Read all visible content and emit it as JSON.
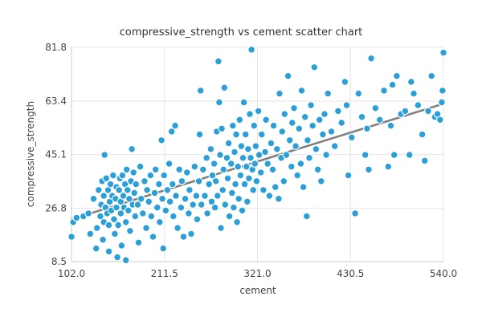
{
  "chart_data": {
    "type": "scatter",
    "title": "compressive_strength vs cement scatter chart",
    "xlabel": "cement",
    "ylabel": "compressive_strength",
    "xlim": [
      102.0,
      540.0
    ],
    "ylim": [
      8.5,
      81.8
    ],
    "x_ticks": [
      "102.0",
      "211.5",
      "321.0",
      "430.5",
      "540.0"
    ],
    "y_ticks": [
      "8.5",
      "26.8",
      "45.1",
      "63.4",
      "81.8"
    ],
    "grid": true,
    "legend": "none",
    "colors": {
      "points": "#2b9fd6",
      "trendline": "#808080"
    },
    "trendline": {
      "x": [
        102.0,
        540.0
      ],
      "y": [
        23.0,
        62.5
      ]
    },
    "series": [
      {
        "points": [
          [
            102,
            17.0
          ],
          [
            104,
            22.0
          ],
          [
            108,
            23.5
          ],
          [
            116,
            24.0
          ],
          [
            122,
            25.0
          ],
          [
            124,
            18.0
          ],
          [
            128,
            30.0
          ],
          [
            131,
            13.0
          ],
          [
            132,
            20.0
          ],
          [
            134,
            33.0
          ],
          [
            136,
            24.0
          ],
          [
            137,
            28.0
          ],
          [
            138,
            36.0
          ],
          [
            139,
            16.0
          ],
          [
            140,
            22.0
          ],
          [
            140,
            31.0
          ],
          [
            141,
            45.0
          ],
          [
            142,
            27.0
          ],
          [
            143,
            37.0
          ],
          [
            144,
            25.0
          ],
          [
            145,
            33.0
          ],
          [
            146,
            21.0
          ],
          [
            146,
            12.0
          ],
          [
            147,
            29.0
          ],
          [
            148,
            35.0
          ],
          [
            149,
            26.0
          ],
          [
            150,
            31.0
          ],
          [
            151,
            38.0
          ],
          [
            152,
            23.0
          ],
          [
            153,
            18.0
          ],
          [
            154,
            30.0
          ],
          [
            155,
            34.0
          ],
          [
            155,
            27.0
          ],
          [
            156,
            10.0
          ],
          [
            157,
            21.0
          ],
          [
            158,
            33.0
          ],
          [
            159,
            37.0
          ],
          [
            160,
            29.0
          ],
          [
            160,
            25.0
          ],
          [
            161,
            14.0
          ],
          [
            162,
            38.0
          ],
          [
            163,
            31.0
          ],
          [
            164,
            27.0
          ],
          [
            165,
            35.0
          ],
          [
            166,
            9.0
          ],
          [
            166,
            22.0
          ],
          [
            167,
            40.0
          ],
          [
            168,
            33.0
          ],
          [
            169,
            26.0
          ],
          [
            170,
            30.0
          ],
          [
            171,
            19.0
          ],
          [
            172,
            36.0
          ],
          [
            173,
            47.0
          ],
          [
            174,
            28.0
          ],
          [
            175,
            39.0
          ],
          [
            176,
            32.0
          ],
          [
            177,
            24.0
          ],
          [
            178,
            35.0
          ],
          [
            180,
            28.0
          ],
          [
            181,
            15.0
          ],
          [
            183,
            41.0
          ],
          [
            184,
            30.0
          ],
          [
            186,
            25.0
          ],
          [
            188,
            36.0
          ],
          [
            190,
            20.0
          ],
          [
            191,
            33.0
          ],
          [
            193,
            29.0
          ],
          [
            195,
            38.0
          ],
          [
            196,
            24.0
          ],
          [
            198,
            17.0
          ],
          [
            200,
            32.0
          ],
          [
            201,
            40.0
          ],
          [
            203,
            27.0
          ],
          [
            205,
            35.0
          ],
          [
            206,
            22.0
          ],
          [
            208,
            50.0
          ],
          [
            209,
            30.0
          ],
          [
            210,
            13.0
          ],
          [
            211,
            38.0
          ],
          [
            213,
            26.0
          ],
          [
            215,
            33.0
          ],
          [
            217,
            42.0
          ],
          [
            218,
            29.0
          ],
          [
            220,
            53.0
          ],
          [
            221,
            35.0
          ],
          [
            222,
            24.0
          ],
          [
            224,
            55.0
          ],
          [
            225,
            31.0
          ],
          [
            227,
            20.0
          ],
          [
            229,
            40.0
          ],
          [
            231,
            27.0
          ],
          [
            232,
            36.0
          ],
          [
            234,
            17.0
          ],
          [
            236,
            30.0
          ],
          [
            238,
            39.0
          ],
          [
            240,
            25.0
          ],
          [
            241,
            33.0
          ],
          [
            243,
            18.0
          ],
          [
            245,
            28.0
          ],
          [
            247,
            41.0
          ],
          [
            249,
            31.0
          ],
          [
            250,
            23.0
          ],
          [
            252,
            36.0
          ],
          [
            253,
            52.0
          ],
          [
            254,
            67.0
          ],
          [
            255,
            28.0
          ],
          [
            257,
            40.0
          ],
          [
            259,
            31.0
          ],
          [
            261,
            44.0
          ],
          [
            262,
            25.0
          ],
          [
            264,
            35.0
          ],
          [
            266,
            47.0
          ],
          [
            267,
            29.0
          ],
          [
            268,
            38.0
          ],
          [
            270,
            42.0
          ],
          [
            271,
            27.0
          ],
          [
            272,
            36.0
          ],
          [
            273,
            53.0
          ],
          [
            274,
            31.0
          ],
          [
            275,
            77.0
          ],
          [
            276,
            63.0
          ],
          [
            277,
            45.0
          ],
          [
            278,
            20.0
          ],
          [
            279,
            54.0
          ],
          [
            280,
            33.0
          ],
          [
            281,
            40.0
          ],
          [
            282,
            68.0
          ],
          [
            283,
            28.0
          ],
          [
            285,
            44.0
          ],
          [
            286,
            37.0
          ],
          [
            287,
            49.0
          ],
          [
            288,
            24.0
          ],
          [
            290,
            42.0
          ],
          [
            291,
            32.0
          ],
          [
            292,
            55.0
          ],
          [
            293,
            27.0
          ],
          [
            294,
            46.0
          ],
          [
            295,
            35.0
          ],
          [
            296,
            52.0
          ],
          [
            297,
            22.0
          ],
          [
            298,
            41.0
          ],
          [
            299,
            30.0
          ],
          [
            300,
            57.0
          ],
          [
            301,
            38.0
          ],
          [
            302,
            48.0
          ],
          [
            303,
            26.0
          ],
          [
            304,
            44.0
          ],
          [
            305,
            63.0
          ],
          [
            306,
            35.0
          ],
          [
            307,
            52.0
          ],
          [
            308,
            41.0
          ],
          [
            309,
            29.0
          ],
          [
            310,
            47.0
          ],
          [
            311,
            37.0
          ],
          [
            312,
            59.0
          ],
          [
            313,
            44.0
          ],
          [
            314,
            81.0
          ],
          [
            315,
            40.0
          ],
          [
            316,
            33.0
          ],
          [
            317,
            55.0
          ],
          [
            318,
            42.0
          ],
          [
            319,
            48.0
          ],
          [
            320,
            36.0
          ],
          [
            322,
            60.0
          ],
          [
            323,
            45.0
          ],
          [
            325,
            39.0
          ],
          [
            326,
            52.0
          ],
          [
            328,
            33.0
          ],
          [
            330,
            46.0
          ],
          [
            331,
            57.0
          ],
          [
            333,
            42.0
          ],
          [
            335,
            31.0
          ],
          [
            337,
            49.0
          ],
          [
            339,
            40.0
          ],
          [
            340,
            55.0
          ],
          [
            342,
            34.0
          ],
          [
            344,
            47.0
          ],
          [
            346,
            30.0
          ],
          [
            347,
            66.0
          ],
          [
            349,
            44.0
          ],
          [
            350,
            53.0
          ],
          [
            352,
            36.0
          ],
          [
            353,
            59.0
          ],
          [
            355,
            45.0
          ],
          [
            357,
            72.0
          ],
          [
            359,
            50.0
          ],
          [
            361,
            41.0
          ],
          [
            362,
            56.0
          ],
          [
            364,
            61.0
          ],
          [
            366,
            48.0
          ],
          [
            368,
            38.0
          ],
          [
            370,
            54.0
          ],
          [
            372,
            42.0
          ],
          [
            373,
            67.0
          ],
          [
            375,
            34.0
          ],
          [
            377,
            58.0
          ],
          [
            379,
            24.0
          ],
          [
            380,
            50.0
          ],
          [
            382,
            44.0
          ],
          [
            384,
            62.0
          ],
          [
            386,
            55.0
          ],
          [
            388,
            75.0
          ],
          [
            390,
            47.0
          ],
          [
            392,
            40.0
          ],
          [
            394,
            57.0
          ],
          [
            396,
            36.0
          ],
          [
            398,
            52.0
          ],
          [
            400,
            59.0
          ],
          [
            402,
            45.0
          ],
          [
            404,
            66.0
          ],
          [
            408,
            53.0
          ],
          [
            412,
            48.0
          ],
          [
            416,
            60.0
          ],
          [
            420,
            56.0
          ],
          [
            424,
            70.0
          ],
          [
            426,
            62.0
          ],
          [
            428,
            38.0
          ],
          [
            432,
            51.0
          ],
          [
            436,
            25.0
          ],
          [
            440,
            66.0
          ],
          [
            444,
            58.0
          ],
          [
            448,
            45.0
          ],
          [
            450,
            54.0
          ],
          [
            452,
            40.0
          ],
          [
            455,
            78.0
          ],
          [
            460,
            61.0
          ],
          [
            465,
            57.0
          ],
          [
            470,
            67.0
          ],
          [
            475,
            41.0
          ],
          [
            478,
            55.0
          ],
          [
            480,
            69.0
          ],
          [
            482,
            45.0
          ],
          [
            485,
            72.0
          ],
          [
            490,
            59.0
          ],
          [
            495,
            60.0
          ],
          [
            500,
            45.0
          ],
          [
            502,
            70.0
          ],
          [
            505,
            66.0
          ],
          [
            510,
            62.0
          ],
          [
            515,
            52.0
          ],
          [
            518,
            43.0
          ],
          [
            522,
            60.0
          ],
          [
            526,
            72.0
          ],
          [
            530,
            58.0
          ],
          [
            533,
            59.0
          ],
          [
            536,
            57.0
          ],
          [
            538,
            63.0
          ],
          [
            539,
            67.0
          ],
          [
            540,
            80.0
          ]
        ]
      }
    ]
  }
}
